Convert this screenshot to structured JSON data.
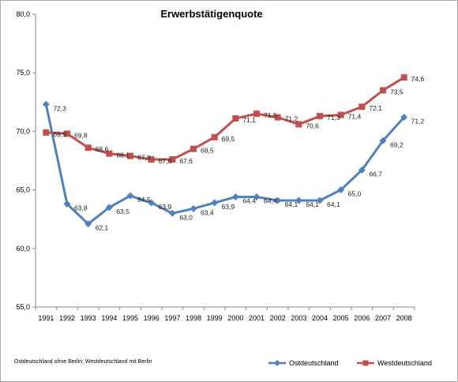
{
  "chart_data": {
    "type": "line",
    "title": "Erwerbstätigenquote",
    "xlabel": "",
    "ylabel": "",
    "ylim": [
      55,
      80
    ],
    "yticks": [
      "55,0",
      "60,0",
      "65,0",
      "70,0",
      "75,0",
      "80,0"
    ],
    "categories": [
      "1991",
      "1992",
      "1993",
      "1994",
      "1995",
      "1996",
      "1997",
      "1998",
      "1999",
      "2000",
      "2001",
      "2002",
      "2003",
      "2004",
      "2005",
      "2006",
      "2007",
      "2008"
    ],
    "series": [
      {
        "name": "Ostdeutschland",
        "color": "#4f81bd",
        "marker": "diamond",
        "values": [
          72.3,
          63.8,
          62.1,
          63.5,
          64.5,
          63.9,
          63.0,
          63.4,
          63.9,
          64.4,
          64.4,
          64.1,
          64.1,
          64.1,
          65.0,
          66.7,
          69.2,
          71.2
        ],
        "labels": [
          "72,3",
          "63,8",
          "62,1",
          "63,5",
          "64,5",
          "63,9",
          "63,0",
          "63,4",
          "63,9",
          "64,4",
          "64,4",
          "64,1",
          "64,1",
          "64,1",
          "65,0",
          "66,7",
          "69,2",
          "71,2"
        ]
      },
      {
        "name": "Westdeutschland",
        "color": "#c0504d",
        "marker": "square",
        "values": [
          69.9,
          69.8,
          68.6,
          68.1,
          67.9,
          67.6,
          67.6,
          68.5,
          69.5,
          71.1,
          71.5,
          71.2,
          70.6,
          71.3,
          71.4,
          72.1,
          73.5,
          74.6
        ],
        "labels": [
          "69,9",
          "69,8",
          "68,6",
          "68,1",
          "67,9",
          "67,6",
          "67,6",
          "68,5",
          "69,5",
          "71,1",
          "71,5",
          "71,2",
          "70,6",
          "71,3",
          "71,4",
          "72,1",
          "73,5",
          "74,6"
        ]
      }
    ],
    "legend_position": "bottom-right",
    "grid": false
  },
  "footnote": "Ostdeutschland ohne Berlin; Westdeutschland mit Berlin"
}
